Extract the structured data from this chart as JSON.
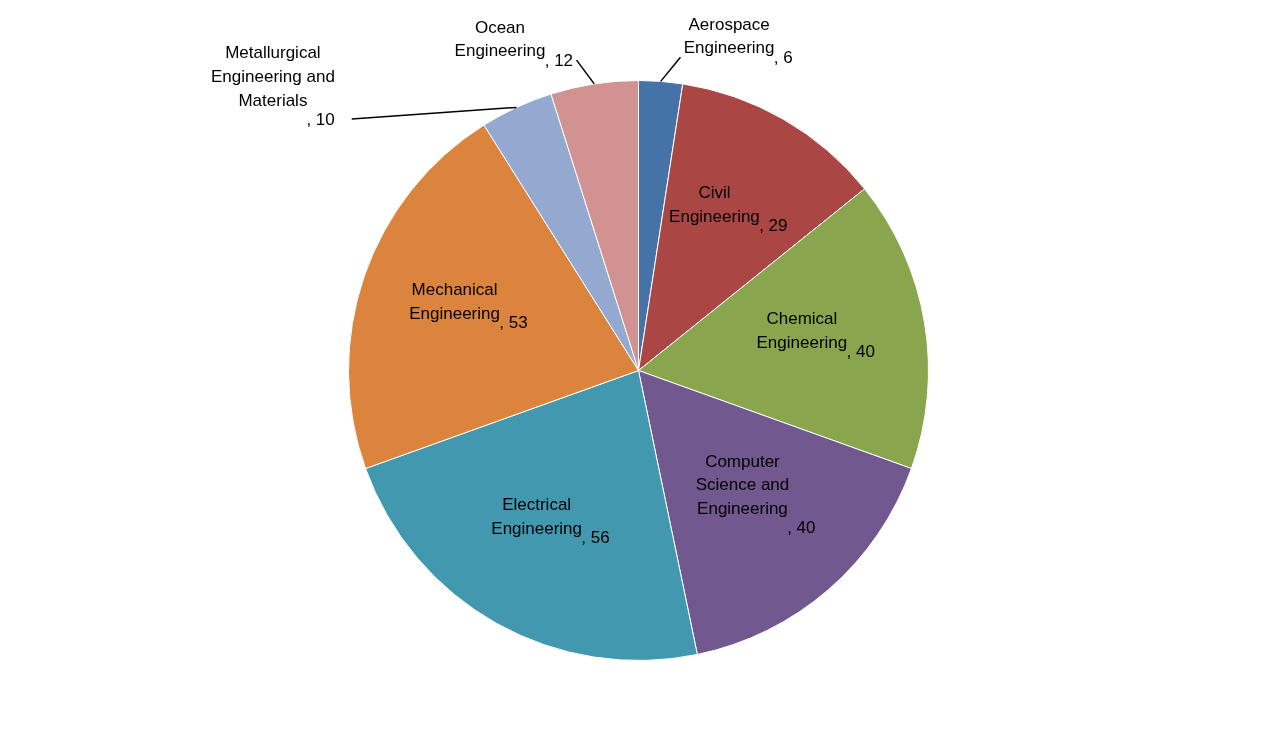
{
  "chart_data": {
    "type": "pie",
    "categories": [
      "Aerospace Engineering",
      "Civil Engineering",
      "Chemical Engineering",
      "Computer Science and Engineering",
      "Electrical Engineering",
      "Mechanical Engineering",
      "Metallurgical Engineering and Materials",
      "Ocean Engineering"
    ],
    "values": [
      6,
      29,
      40,
      40,
      56,
      53,
      10,
      12
    ],
    "value_labels": [
      ", 6",
      ", 29",
      ", 40",
      ", 40",
      ", 56",
      ", 53",
      ", 10",
      ", 12"
    ],
    "colors": [
      "#4572a7",
      "#aa4643",
      "#89a54e",
      "#71588f",
      "#4198af",
      "#db843d",
      "#93a9cf",
      "#d09392"
    ],
    "legend": false
  }
}
